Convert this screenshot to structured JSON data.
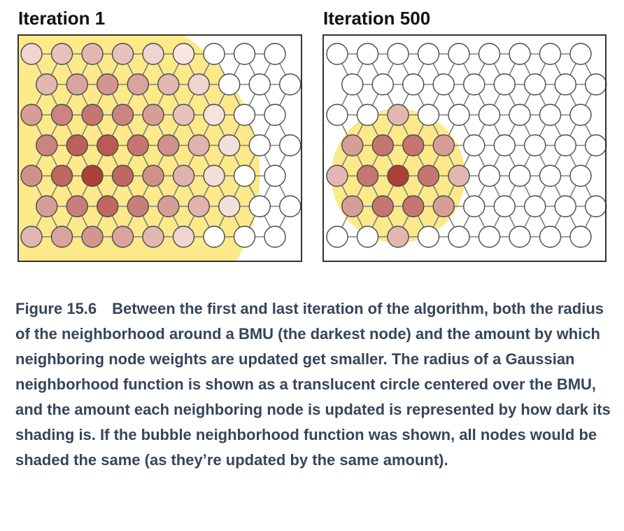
{
  "panels": [
    {
      "title": "Iteration 1",
      "radius": 5.5,
      "influence": [
        [
          0.18,
          0.28,
          0.34,
          0.28,
          0.18,
          0.08,
          0,
          0,
          0
        ],
        [
          0.34,
          0.45,
          0.53,
          0.45,
          0.34,
          0.18,
          0,
          0,
          0
        ],
        [
          0.48,
          0.62,
          0.7,
          0.62,
          0.48,
          0.28,
          0.1,
          0,
          0
        ],
        [
          0.62,
          0.82,
          0.85,
          0.7,
          0.55,
          0.36,
          0.12,
          0,
          0
        ],
        [
          0.55,
          0.78,
          1.0,
          0.78,
          0.55,
          0.36,
          0.12,
          0,
          0
        ],
        [
          0.48,
          0.65,
          0.78,
          0.65,
          0.48,
          0.36,
          0.12,
          0,
          0
        ],
        [
          0.34,
          0.45,
          0.53,
          0.45,
          0.34,
          0.18,
          0,
          0,
          0
        ]
      ]
    },
    {
      "title": "Iteration 500",
      "radius": 2.2,
      "influence": [
        [
          0,
          0,
          0,
          0,
          0,
          0,
          0,
          0,
          0
        ],
        [
          0,
          0,
          0,
          0,
          0,
          0,
          0,
          0,
          0
        ],
        [
          0,
          0,
          0.34,
          0,
          0,
          0,
          0,
          0,
          0
        ],
        [
          0.48,
          0.7,
          0.7,
          0.48,
          0,
          0,
          0,
          0,
          0
        ],
        [
          0.34,
          0.7,
          1.0,
          0.7,
          0.34,
          0,
          0,
          0,
          0
        ],
        [
          0.48,
          0.7,
          0.7,
          0.48,
          0,
          0,
          0,
          0,
          0
        ],
        [
          0,
          0,
          0.34,
          0,
          0,
          0,
          0,
          0,
          0
        ]
      ]
    }
  ],
  "bmu": {
    "row": 4,
    "col": 2
  },
  "colors": {
    "neighborhood": "#fbe98a",
    "node_light": "#fdf5f0",
    "node_dark": "#ad3f39",
    "node_empty": "#ffffff",
    "edge": "#808080",
    "frame": "#333333"
  },
  "caption": {
    "label": "Figure 15.6",
    "text": "Between the first and last iteration of the algorithm, both the radius of the neighborhood around a BMU (the darkest node) and the amount by which neighboring node weights are updated get smaller. The radius of a Gaussian neighborhood function is shown as a translucent circle centered over the BMU, and the amount each neighboring node is updated is represented by how dark its shading is. If the bubble neighborhood function was shown, all nodes would be shaded the same (as they’re updated by the same amount)."
  }
}
